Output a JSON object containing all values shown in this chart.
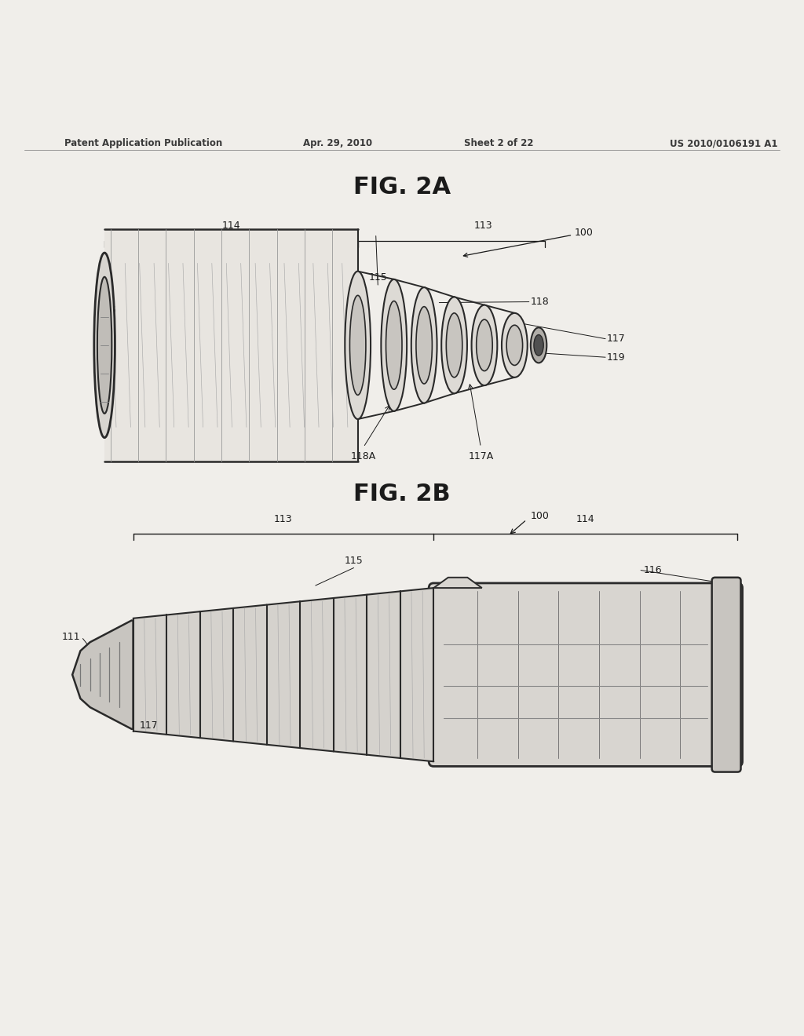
{
  "background_color": "#f0eeea",
  "header_text": "Patent Application Publication",
  "header_date": "Apr. 29, 2010",
  "header_sheet": "Sheet 2 of 22",
  "header_patent": "US 2010/0106191 A1",
  "fig2a_title": "FIG. 2A",
  "fig2b_title": "FIG. 2B",
  "line_color": "#2a2a2a",
  "text_color": "#1a1a1a",
  "header_color": "#3a3a3a"
}
